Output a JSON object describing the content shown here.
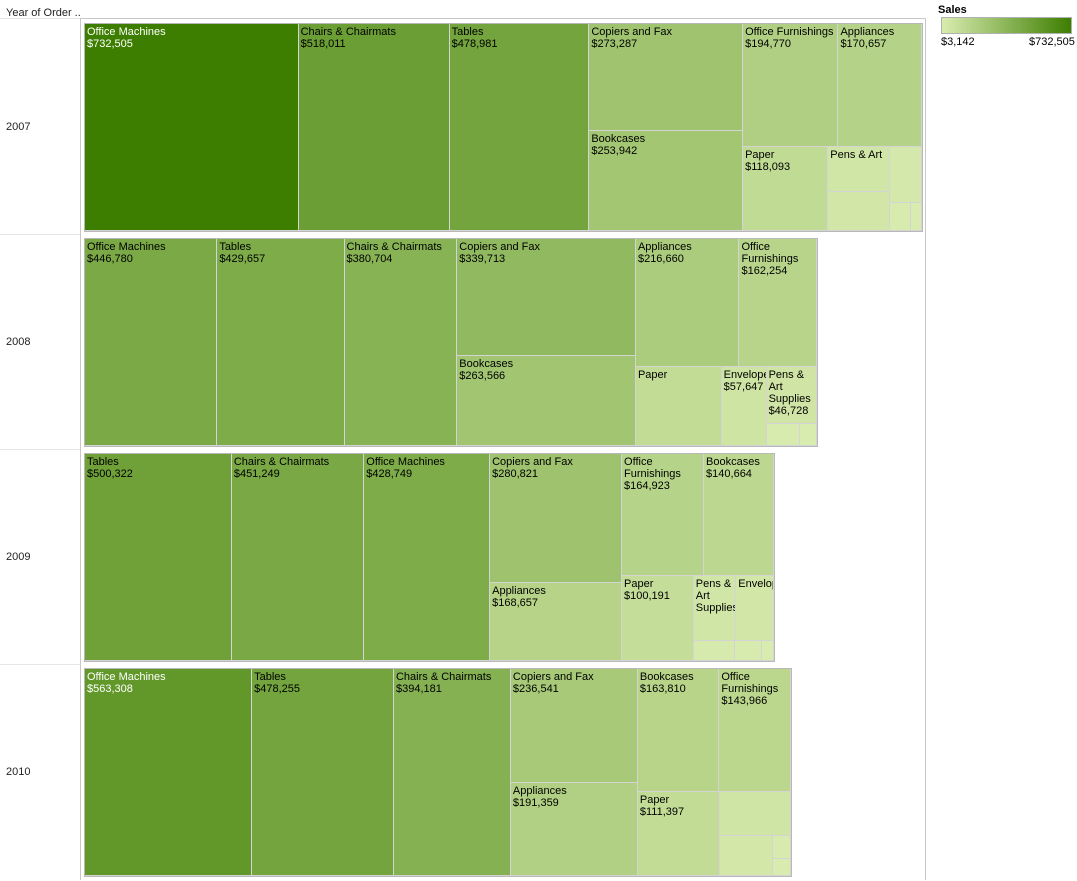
{
  "header": {
    "row_field": "Year of Order .."
  },
  "legend": {
    "title": "Sales",
    "min_label": "$3,142",
    "max_label": "$732,505",
    "color_low": "#d9ecb0",
    "color_high": "#3d7e00"
  },
  "chart_data": {
    "type": "treemap",
    "color_measure": "Sales",
    "color_range": [
      3142,
      732505
    ],
    "years": [
      {
        "year": "2007",
        "items": [
          {
            "name": "Office Machines",
            "sales": 732505,
            "value_label": "$732,505"
          },
          {
            "name": "Chairs & Chairmats",
            "sales": 518011,
            "value_label": "$518,011"
          },
          {
            "name": "Tables",
            "sales": 478981,
            "value_label": "$478,981"
          },
          {
            "name": "Copiers and Fax",
            "sales": 273287,
            "value_label": "$273,287"
          },
          {
            "name": "Bookcases",
            "sales": 253942,
            "value_label": "$253,942"
          },
          {
            "name": "Office Furnishings",
            "sales": 194770,
            "value_label": "$194,770"
          },
          {
            "name": "Appliances",
            "sales": 170657,
            "value_label": "$170,657"
          },
          {
            "name": "Paper",
            "sales": 118093,
            "value_label": "$118,093"
          },
          {
            "name": "Pens & Art",
            "sales": 45000,
            "value_label": ""
          },
          {
            "name": "",
            "sales": 40000,
            "value_label": ""
          },
          {
            "name": "",
            "sales": 30000,
            "value_label": ""
          },
          {
            "name": "",
            "sales": 10000,
            "value_label": ""
          },
          {
            "name": "",
            "sales": 5000,
            "value_label": ""
          }
        ]
      },
      {
        "year": "2008",
        "items": [
          {
            "name": "Office Machines",
            "sales": 446780,
            "value_label": "$446,780"
          },
          {
            "name": "Tables",
            "sales": 429657,
            "value_label": "$429,657"
          },
          {
            "name": "Chairs & Chairmats",
            "sales": 380704,
            "value_label": "$380,704"
          },
          {
            "name": "Copiers and Fax",
            "sales": 339713,
            "value_label": "$339,713"
          },
          {
            "name": "Bookcases",
            "sales": 263566,
            "value_label": "$263,566"
          },
          {
            "name": "Appliances",
            "sales": 216660,
            "value_label": "$216,660"
          },
          {
            "name": "Office Furnishings",
            "sales": 162254,
            "value_label": "$162,254"
          },
          {
            "name": "Paper",
            "sales": 110000,
            "value_label": ""
          },
          {
            "name": "Envelopes",
            "sales": 57647,
            "value_label": "$57,647"
          },
          {
            "name": "Pens & Art Supplies",
            "sales": 46728,
            "value_label": "$46,728"
          },
          {
            "name": "",
            "sales": 12000,
            "value_label": ""
          },
          {
            "name": "",
            "sales": 6000,
            "value_label": ""
          }
        ]
      },
      {
        "year": "2009",
        "items": [
          {
            "name": "Tables",
            "sales": 500322,
            "value_label": "$500,322"
          },
          {
            "name": "Chairs & Chairmats",
            "sales": 451249,
            "value_label": "$451,249"
          },
          {
            "name": "Office Machines",
            "sales": 428749,
            "value_label": "$428,749"
          },
          {
            "name": "Copiers and Fax",
            "sales": 280821,
            "value_label": "$280,821"
          },
          {
            "name": "Appliances",
            "sales": 168657,
            "value_label": "$168,657"
          },
          {
            "name": "Office Furnishings",
            "sales": 164923,
            "value_label": "$164,923"
          },
          {
            "name": "Bookcases",
            "sales": 140664,
            "value_label": "$140,664"
          },
          {
            "name": "Paper",
            "sales": 100191,
            "value_label": "$100,191"
          },
          {
            "name": "Pens & Art Supplies",
            "sales": 45000,
            "value_label": ""
          },
          {
            "name": "Envelopes",
            "sales": 40000,
            "value_label": ""
          },
          {
            "name": "",
            "sales": 14000,
            "value_label": ""
          },
          {
            "name": "",
            "sales": 9000,
            "value_label": ""
          },
          {
            "name": "",
            "sales": 4000,
            "value_label": ""
          }
        ]
      },
      {
        "year": "2010",
        "items": [
          {
            "name": "Office Machines",
            "sales": 563308,
            "value_label": "$563,308"
          },
          {
            "name": "Tables",
            "sales": 478255,
            "value_label": "$478,255"
          },
          {
            "name": "Chairs & Chairmats",
            "sales": 394181,
            "value_label": "$394,181"
          },
          {
            "name": "Copiers and Fax",
            "sales": 236541,
            "value_label": "$236,541"
          },
          {
            "name": "Appliances",
            "sales": 191359,
            "value_label": "$191,359"
          },
          {
            "name": "Bookcases",
            "sales": 163810,
            "value_label": "$163,810"
          },
          {
            "name": "Office Furnishings",
            "sales": 143966,
            "value_label": "$143,966"
          },
          {
            "name": "Paper",
            "sales": 111397,
            "value_label": "$111,397"
          },
          {
            "name": "",
            "sales": 50000,
            "value_label": ""
          },
          {
            "name": "",
            "sales": 35000,
            "value_label": ""
          },
          {
            "name": "",
            "sales": 7000,
            "value_label": ""
          },
          {
            "name": "",
            "sales": 5000,
            "value_label": ""
          }
        ]
      }
    ]
  }
}
